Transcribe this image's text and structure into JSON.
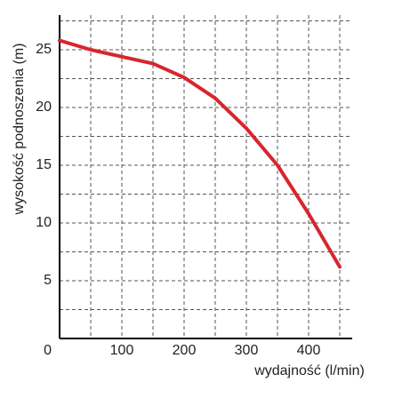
{
  "chart_data": {
    "type": "line",
    "x_label": "wydajność (l/min)",
    "y_label": "wysokość podnoszenia (m)",
    "x": [
      0,
      50,
      100,
      150,
      200,
      250,
      300,
      350,
      400,
      450
    ],
    "series": [
      {
        "color": "#d7262e",
        "values": [
          25.8,
          25,
          24.4,
          23.8,
          22.6,
          20.8,
          18.2,
          15,
          10.8,
          6.2
        ]
      }
    ],
    "xlim": [
      0,
      470
    ],
    "ylim": [
      0,
      28
    ],
    "xticks": [
      100,
      200,
      300,
      400
    ],
    "yticks": [
      0,
      5,
      10,
      15,
      20,
      25
    ],
    "grid": true
  }
}
